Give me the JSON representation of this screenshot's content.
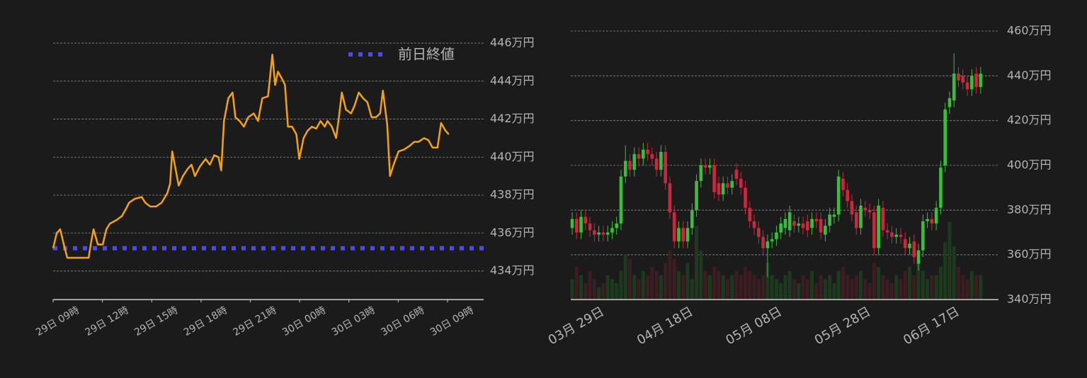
{
  "chart_data": [
    {
      "type": "line",
      "x": [
        0,
        0.22,
        0.43,
        0.65,
        0.86,
        2.16,
        2.29,
        2.46,
        2.72,
        3.02,
        3.24,
        3.45,
        3.88,
        4.19,
        4.45,
        4.62,
        4.96,
        5.39,
        5.61,
        5.91,
        6.26,
        6.6,
        6.95,
        7.12,
        7.25,
        7.47,
        7.64,
        7.9,
        8.2,
        8.42,
        8.63,
        8.93,
        9.28,
        9.54,
        9.8,
        10.06,
        10.23,
        10.4,
        10.66,
        10.92,
        11.09,
        11.35,
        11.61,
        11.87,
        12.21,
        12.47,
        12.73,
        13.08,
        13.34,
        13.51,
        13.68,
        13.94,
        14.11,
        14.29,
        14.54,
        14.8,
        14.98,
        15.24,
        15.49,
        15.75,
        16.01,
        16.27,
        16.53,
        16.7,
        16.96,
        17.22,
        17.39,
        17.57,
        17.82,
        18.13,
        18.34,
        18.6,
        18.86,
        19.12,
        19.38,
        19.64,
        19.9,
        20.07,
        20.33,
        20.5,
        20.72,
        21.02,
        21.36,
        21.71,
        21.97,
        22.23,
        22.57,
        22.83,
        23.09,
        23.39,
        23.61,
        23.87,
        24.08
      ],
      "values": [
        435.2,
        436.0,
        436.2,
        435.4,
        434.7,
        434.7,
        435.4,
        436.2,
        435.4,
        435.4,
        436.2,
        436.5,
        436.7,
        436.9,
        437.3,
        437.6,
        437.8,
        437.9,
        437.6,
        437.4,
        437.4,
        437.6,
        438.1,
        438.6,
        440.3,
        439.3,
        438.5,
        439.0,
        439.4,
        439.6,
        439.0,
        439.5,
        439.9,
        439.6,
        440.1,
        440.0,
        439.3,
        441.9,
        443.1,
        443.4,
        442.1,
        441.9,
        441.6,
        442.1,
        442.3,
        441.9,
        443.1,
        443.2,
        445.4,
        443.8,
        444.5,
        444.1,
        443.8,
        441.6,
        441.6,
        441.2,
        439.9,
        441.0,
        441.4,
        441.6,
        441.5,
        441.9,
        441.6,
        441.9,
        441.6,
        441.0,
        442.1,
        443.4,
        442.5,
        442.3,
        442.7,
        443.4,
        443.1,
        442.9,
        442.1,
        442.1,
        442.3,
        443.5,
        441.7,
        439.0,
        439.6,
        440.3,
        440.4,
        440.6,
        440.8,
        440.8,
        441.0,
        440.9,
        440.5,
        440.5,
        441.8,
        441.4,
        441.2
      ],
      "color": "#f5a20f",
      "reference_line": {
        "name": "前日終値",
        "value": 435.2,
        "color": "#4b4bf0"
      },
      "legend": "upper right",
      "xlim": [
        0,
        26.2
      ],
      "xticks": [
        {
          "value": 0,
          "label": "29日 09時"
        },
        {
          "value": 3,
          "label": "29日 12時"
        },
        {
          "value": 6,
          "label": "29日 15時"
        },
        {
          "value": 9,
          "label": "29日 18時"
        },
        {
          "value": 12,
          "label": "29日 21時"
        },
        {
          "value": 15,
          "label": "30日 00時"
        },
        {
          "value": 18,
          "label": "30日 03時"
        },
        {
          "value": 21,
          "label": "30日 06時"
        },
        {
          "value": 24,
          "label": "30日 09時"
        }
      ],
      "ylim": [
        432.5,
        446.5
      ],
      "yticks": [
        {
          "value": 434,
          "label": "434万円"
        },
        {
          "value": 436,
          "label": "436万円"
        },
        {
          "value": 438,
          "label": "438万円"
        },
        {
          "value": 440,
          "label": "440万円"
        },
        {
          "value": 442,
          "label": "442万円"
        },
        {
          "value": 444,
          "label": "444万円"
        },
        {
          "value": 446,
          "label": "446万円"
        }
      ],
      "grid": true
    },
    {
      "type": "candlestick",
      "categories": [
        null,
        null,
        null,
        null,
        null,
        null,
        null,
        "03月 29日",
        null,
        null,
        null,
        null,
        null,
        null,
        null,
        null,
        null,
        null,
        null,
        null,
        null,
        null,
        null,
        null,
        null,
        null,
        null,
        "04月 18日",
        null,
        null,
        null,
        null,
        null,
        null,
        null,
        null,
        null,
        null,
        null,
        null,
        null,
        null,
        null,
        null,
        null,
        null,
        null,
        "05月 08日",
        null,
        null,
        null,
        null,
        null,
        null,
        null,
        null,
        null,
        null,
        null,
        null,
        null,
        null,
        null,
        null,
        null,
        null,
        null,
        "05月 28日",
        null,
        null,
        null,
        null,
        null,
        null,
        null,
        null,
        null,
        null,
        null,
        null,
        null,
        null,
        null,
        null,
        null,
        null,
        null,
        "06月 17日",
        null,
        null,
        null,
        null,
        null
      ],
      "open": [
        372,
        376,
        370,
        377,
        374,
        371,
        369,
        370,
        369,
        370,
        372,
        374,
        395,
        402,
        398,
        405,
        403,
        407,
        405,
        403,
        398,
        406,
        392,
        379,
        366,
        372,
        366,
        372,
        380,
        393,
        400,
        399,
        400,
        392,
        387,
        392,
        390,
        398,
        394,
        390,
        381,
        375,
        372,
        368,
        363,
        366,
        367,
        370,
        372,
        371,
        375,
        373,
        374,
        375,
        372,
        376,
        376,
        369,
        373,
        377,
        378,
        394,
        389,
        384,
        379,
        372,
        381,
        380,
        379,
        363,
        381,
        371,
        370,
        368,
        369,
        367,
        363,
        366,
        356,
        362,
        375,
        376,
        374,
        381,
        400,
        426,
        429,
        441,
        440,
        437,
        434,
        441,
        435
      ],
      "high": [
        379,
        379,
        380,
        380,
        377,
        374,
        373,
        373,
        373,
        375,
        377,
        398,
        409,
        405,
        408,
        408,
        410,
        410,
        408,
        406,
        409,
        409,
        395,
        382,
        375,
        375,
        375,
        383,
        396,
        403,
        403,
        403,
        403,
        395,
        395,
        395,
        396,
        401,
        397,
        393,
        384,
        378,
        375,
        371,
        369,
        370,
        373,
        377,
        379,
        382,
        378,
        377,
        377,
        378,
        379,
        379,
        379,
        376,
        381,
        381,
        398,
        397,
        392,
        387,
        382,
        385,
        384,
        383,
        382,
        385,
        384,
        374,
        373,
        372,
        372,
        370,
        368,
        369,
        365,
        378,
        379,
        379,
        384,
        402,
        428,
        433,
        450,
        444,
        443,
        440,
        443,
        444,
        444
      ],
      "low": [
        369,
        367,
        367,
        371,
        368,
        366,
        366,
        366,
        366,
        367,
        369,
        371,
        392,
        395,
        395,
        400,
        400,
        402,
        400,
        395,
        395,
        389,
        376,
        363,
        363,
        363,
        363,
        369,
        377,
        390,
        396,
        396,
        385,
        384,
        384,
        387,
        387,
        391,
        387,
        378,
        372,
        369,
        365,
        360,
        350,
        363,
        364,
        367,
        369,
        368,
        370,
        370,
        369,
        368,
        369,
        372,
        367,
        366,
        370,
        374,
        375,
        386,
        381,
        375,
        369,
        369,
        377,
        376,
        360,
        360,
        368,
        367,
        365,
        365,
        365,
        360,
        360,
        356,
        353,
        359,
        372,
        371,
        371,
        378,
        397,
        423,
        426,
        435,
        434,
        431,
        431,
        432,
        432
      ],
      "close": [
        376,
        370,
        377,
        374,
        371,
        369,
        370,
        369,
        370,
        372,
        374,
        395,
        402,
        398,
        405,
        403,
        407,
        405,
        403,
        398,
        406,
        392,
        379,
        366,
        372,
        366,
        372,
        380,
        393,
        400,
        399,
        400,
        388,
        387,
        392,
        390,
        393,
        394,
        390,
        381,
        375,
        372,
        368,
        363,
        366,
        367,
        370,
        374,
        376,
        379,
        373,
        374,
        372,
        371,
        376,
        375,
        370,
        373,
        378,
        378,
        395,
        389,
        384,
        378,
        372,
        382,
        380,
        379,
        363,
        382,
        371,
        370,
        368,
        369,
        368,
        363,
        365,
        359,
        362,
        375,
        376,
        374,
        381,
        399,
        425,
        430,
        441,
        438,
        437,
        434,
        440,
        435,
        441
      ],
      "volume": [
        25,
        40,
        30,
        20,
        35,
        25,
        15,
        20,
        30,
        25,
        20,
        35,
        55,
        50,
        30,
        25,
        35,
        30,
        40,
        35,
        30,
        45,
        60,
        50,
        35,
        30,
        45,
        25,
        90,
        60,
        35,
        30,
        40,
        35,
        30,
        25,
        30,
        35,
        30,
        40,
        35,
        30,
        25,
        30,
        45,
        30,
        25,
        20,
        30,
        35,
        25,
        20,
        30,
        25,
        35,
        20,
        30,
        25,
        30,
        20,
        35,
        40,
        30,
        25,
        30,
        35,
        25,
        20,
        45,
        40,
        30,
        25,
        20,
        30,
        25,
        35,
        40,
        30,
        45,
        35,
        25,
        30,
        30,
        40,
        70,
        95,
        65,
        40,
        30,
        25,
        35,
        30,
        30
      ],
      "up_color": "#3cbc3c",
      "down_color": "#c9283e",
      "ylim": [
        340,
        460
      ],
      "yticks": [
        {
          "value": 340,
          "label": "340万円"
        },
        {
          "value": 360,
          "label": "360万円"
        },
        {
          "value": 380,
          "label": "380万円"
        },
        {
          "value": 400,
          "label": "400万円"
        },
        {
          "value": 420,
          "label": "420万円"
        },
        {
          "value": 440,
          "label": "440万円"
        },
        {
          "value": 460,
          "label": "460万円"
        }
      ],
      "grid": true
    }
  ]
}
